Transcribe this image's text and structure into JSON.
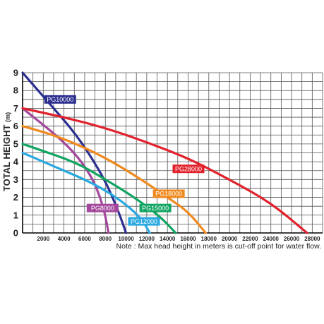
{
  "chart_data": {
    "type": "line",
    "ylabel": "TOTAL HEIGHT",
    "ylabel_unit": "(m)",
    "xlabel": "",
    "xlim": [
      0,
      29000
    ],
    "ylim": [
      0,
      9
    ],
    "x_ticks": [
      "2000",
      "4000",
      "6000",
      "8000",
      "10000",
      "12000",
      "14000",
      "16000",
      "18000",
      "20000",
      "22000",
      "24000",
      "26000",
      "28000"
    ],
    "y_ticks": [
      "0",
      "1",
      "2",
      "3",
      "4",
      "5",
      "6",
      "7",
      "8",
      "9"
    ],
    "grid": true,
    "note": "Note : Max head height in meters is cut-off point for water flow.",
    "series": [
      {
        "name": "PG10000",
        "color": "#2b2f8f",
        "label_bg": "#2b2f8f",
        "label_fg": "#ffffff",
        "points": [
          [
            0,
            9.0
          ],
          [
            1500,
            8.0
          ],
          [
            3000,
            7.0
          ],
          [
            4500,
            6.0
          ],
          [
            5800,
            5.0
          ],
          [
            6900,
            4.0
          ],
          [
            7900,
            3.0
          ],
          [
            8700,
            2.0
          ],
          [
            9400,
            1.0
          ],
          [
            10000,
            0.0
          ]
        ]
      },
      {
        "name": "PG8000",
        "color": "#a3479c",
        "label_bg": "#a3479c",
        "label_fg": "#ffffff",
        "points": [
          [
            0,
            7.0
          ],
          [
            1500,
            6.3
          ],
          [
            3000,
            5.6
          ],
          [
            4500,
            4.8
          ],
          [
            5700,
            4.0
          ],
          [
            6800,
            3.0
          ],
          [
            7500,
            2.0
          ],
          [
            8000,
            1.0
          ],
          [
            8300,
            0.0
          ]
        ]
      },
      {
        "name": "PG12000",
        "color": "#29a9e0",
        "label_bg": "#29a9e0",
        "label_fg": "#ffffff",
        "points": [
          [
            0,
            4.5
          ],
          [
            2000,
            4.0
          ],
          [
            4000,
            3.5
          ],
          [
            6000,
            3.0
          ],
          [
            8000,
            2.4
          ],
          [
            10000,
            1.6
          ],
          [
            11500,
            0.8
          ],
          [
            12300,
            0.0
          ]
        ]
      },
      {
        "name": "PG15000",
        "color": "#12a562",
        "label_bg": "#12a562",
        "label_fg": "#ffffff",
        "points": [
          [
            0,
            5.0
          ],
          [
            2000,
            4.6
          ],
          [
            4000,
            4.2
          ],
          [
            6000,
            3.7
          ],
          [
            8000,
            3.0
          ],
          [
            10000,
            2.3
          ],
          [
            12000,
            1.5
          ],
          [
            13500,
            0.8
          ],
          [
            14800,
            0.0
          ]
        ]
      },
      {
        "name": "PG18000",
        "color": "#f0891f",
        "label_bg": "#f0891f",
        "label_fg": "#ffffff",
        "points": [
          [
            0,
            6.0
          ],
          [
            3000,
            5.5
          ],
          [
            6000,
            4.8
          ],
          [
            9000,
            3.9
          ],
          [
            12000,
            2.8
          ],
          [
            14000,
            2.0
          ],
          [
            16000,
            1.2
          ],
          [
            17700,
            0.0
          ]
        ]
      },
      {
        "name": "PG28000",
        "color": "#e1222c",
        "label_bg": "#e1222c",
        "label_fg": "#ffffff",
        "points": [
          [
            0,
            7.0
          ],
          [
            4000,
            6.5
          ],
          [
            8000,
            5.9
          ],
          [
            12000,
            5.1
          ],
          [
            16000,
            4.2
          ],
          [
            20000,
            3.0
          ],
          [
            24000,
            1.7
          ],
          [
            27500,
            0.0
          ]
        ]
      }
    ],
    "label_positions": {
      "PG10000": [
        2100,
        7.5
      ],
      "PG8000": [
        6200,
        1.4
      ],
      "PG12000": [
        10200,
        0.65
      ],
      "PG15000": [
        11300,
        1.4
      ],
      "PG18000": [
        12600,
        2.2
      ],
      "PG28000": [
        14500,
        3.6
      ]
    }
  }
}
